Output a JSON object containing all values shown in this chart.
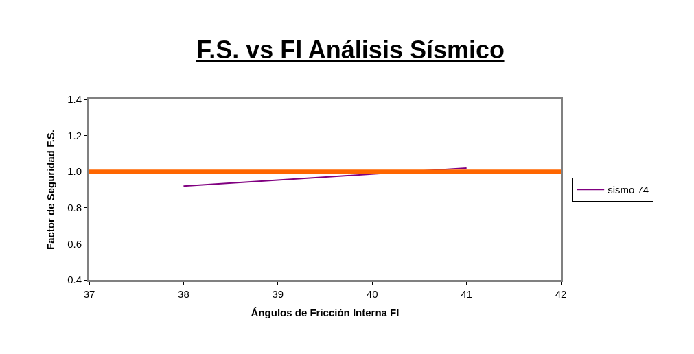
{
  "chart_data": {
    "type": "line",
    "title": "F.S. vs FI Análisis Sísmico",
    "xlabel": "Ángulos de Fricción Interna FI",
    "ylabel": "Factor de Seguridad F.S.",
    "series": [
      {
        "name": "sismo 74",
        "color": "#800080",
        "x": [
          38,
          41
        ],
        "values": [
          0.92,
          1.02
        ]
      }
    ],
    "xlim": [
      37,
      42
    ],
    "xticks": [
      37,
      38,
      39,
      40,
      41,
      42
    ],
    "ylim": [
      0.4,
      1.4
    ],
    "yticks": [
      {
        "value": 0.4,
        "label": "0.4"
      },
      {
        "value": 0.6,
        "label": "0.6"
      },
      {
        "value": 0.8,
        "label": "0.8"
      },
      {
        "value": 1.0,
        "label": "1.0"
      },
      {
        "value": 1.2,
        "label": "1.2"
      },
      {
        "value": 1.4,
        "label": "1.4"
      }
    ],
    "ref_lines": [
      {
        "axis": "y",
        "value": 1.0,
        "color": "#ff6600"
      }
    ],
    "legend": "right",
    "marker": "none",
    "line_style": "solid"
  }
}
